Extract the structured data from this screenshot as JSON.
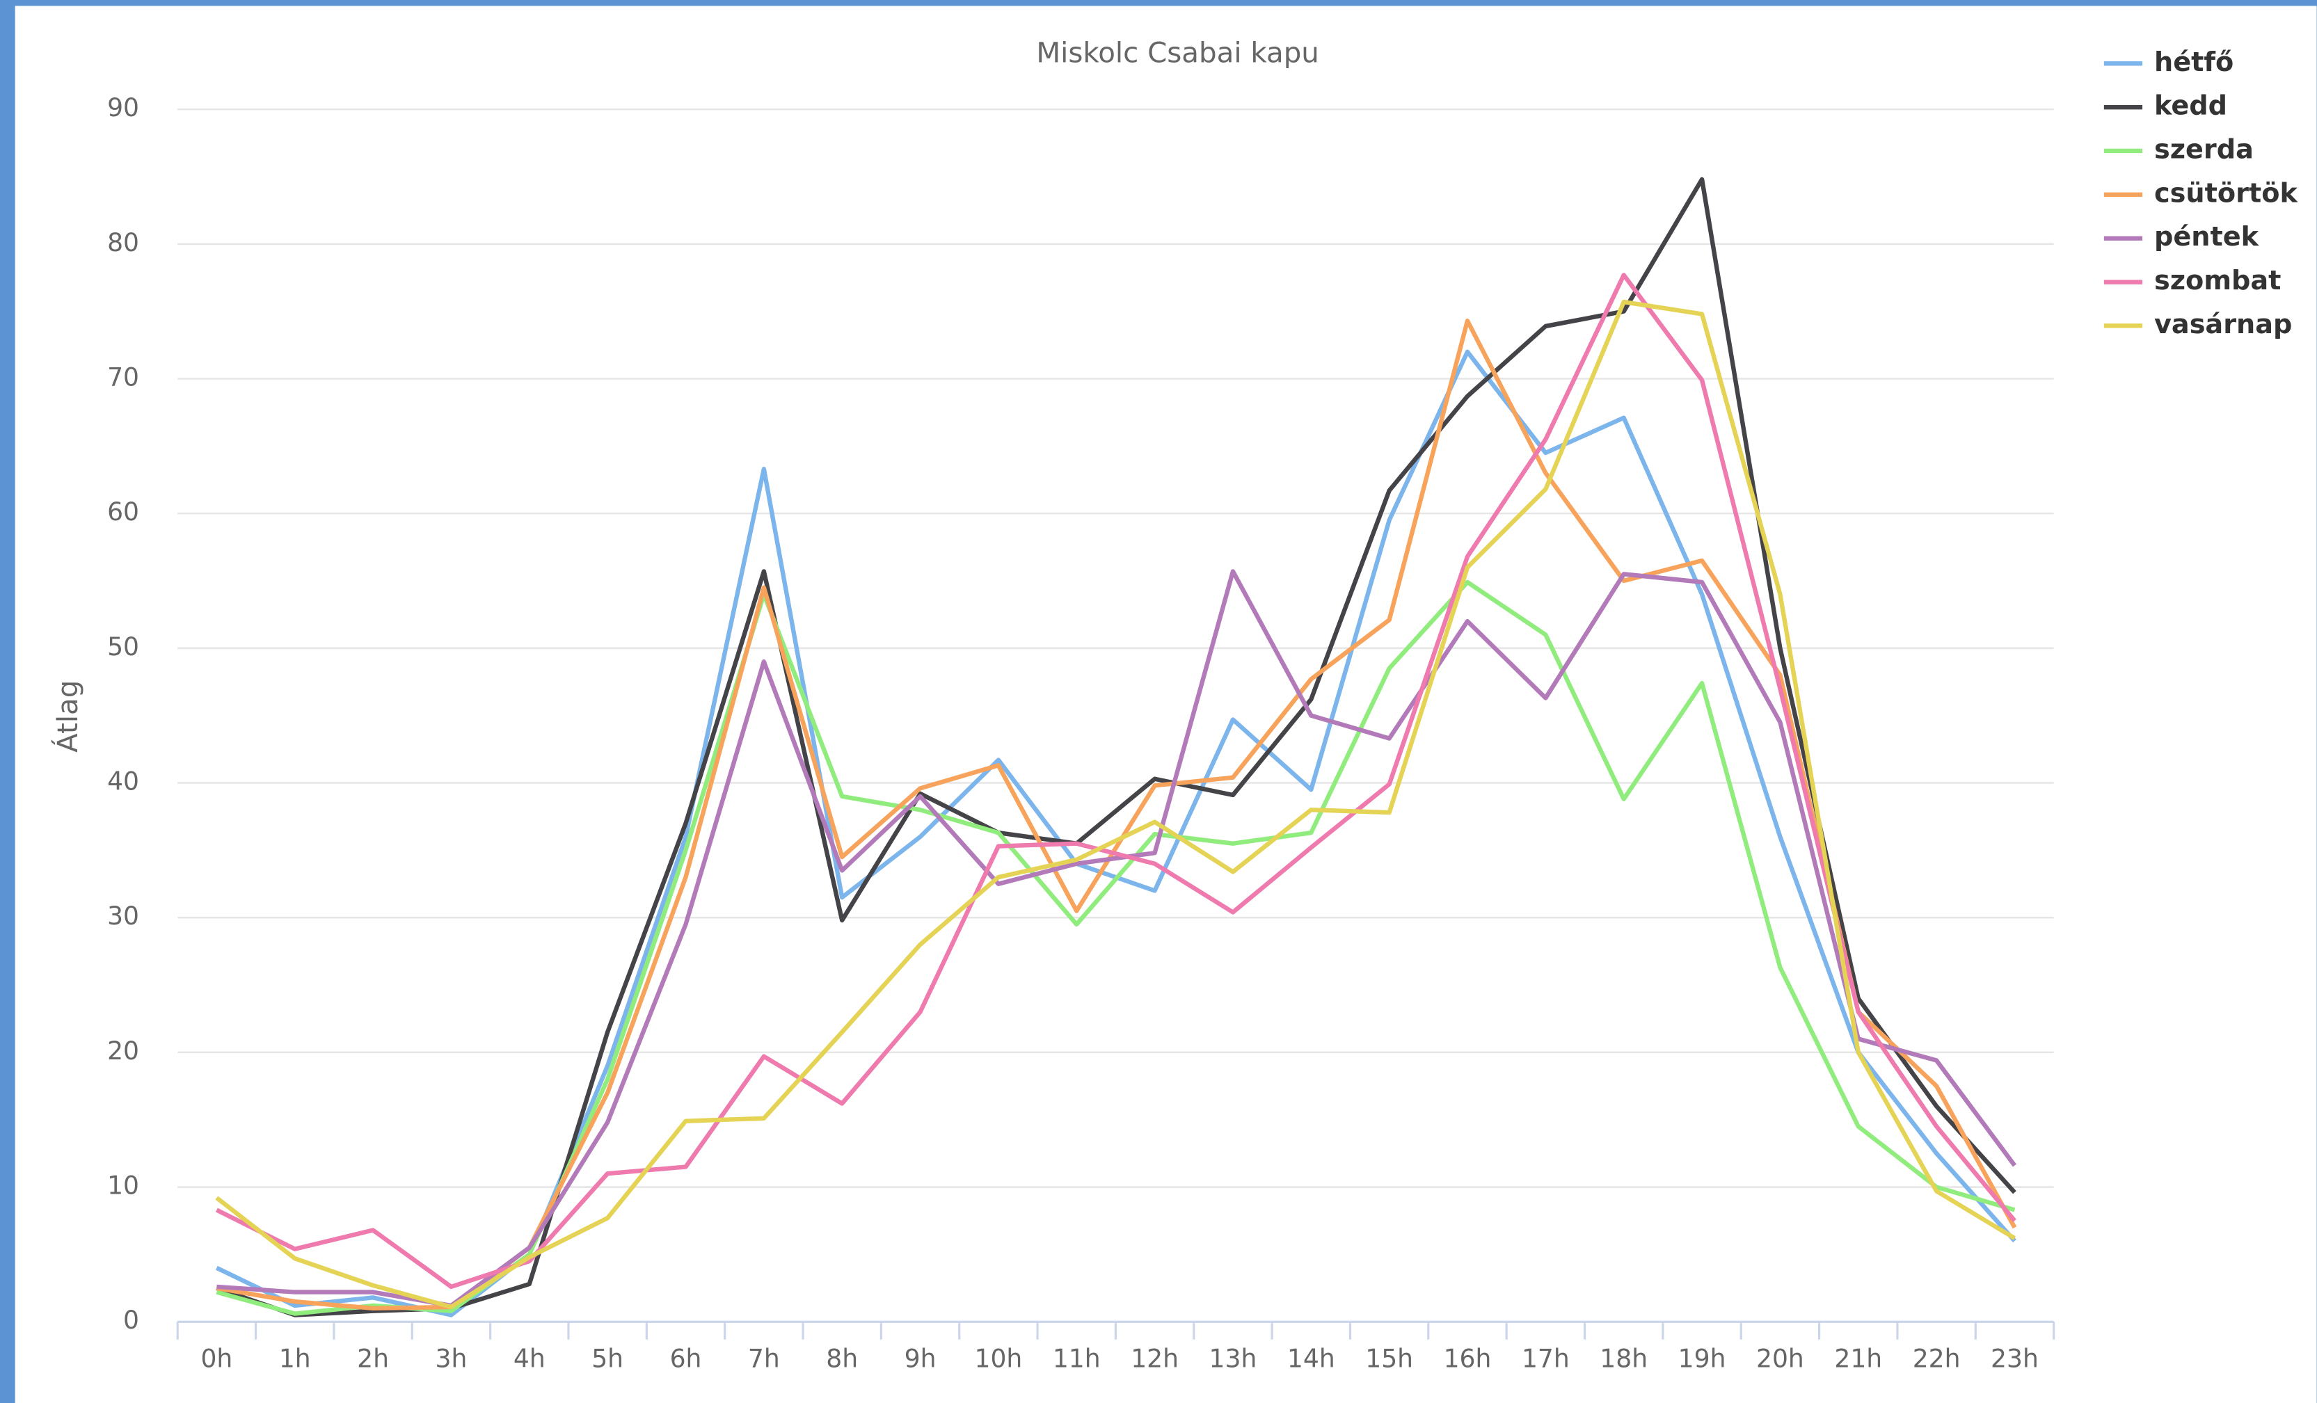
{
  "chart_data": {
    "type": "line",
    "title": "Miskolc Csabai kapu",
    "y_label": "Átlag",
    "categories": [
      "0h",
      "1h",
      "2h",
      "3h",
      "4h",
      "5h",
      "6h",
      "7h",
      "8h",
      "9h",
      "10h",
      "11h",
      "12h",
      "13h",
      "14h",
      "15h",
      "16h",
      "17h",
      "18h",
      "19h",
      "20h",
      "21h",
      "22h",
      "23h"
    ],
    "ylim": [
      0,
      90
    ],
    "yticks": [
      0,
      10,
      20,
      30,
      40,
      50,
      60,
      70,
      80,
      90
    ],
    "grid": true,
    "legend": "top-right",
    "series": [
      {
        "name": "hétfő",
        "color": "#7cb5ec",
        "values": [
          4,
          1.2,
          1.8,
          0.5,
          5,
          19,
          36,
          63.3,
          31.5,
          36,
          41.7,
          34,
          32,
          44.7,
          39.5,
          59.5,
          72,
          64.5,
          67.1,
          54,
          36,
          20,
          12.5,
          6
        ]
      },
      {
        "name": "kedd",
        "color": "#434348",
        "values": [
          2.5,
          0.5,
          0.8,
          1,
          2.8,
          21.5,
          37,
          55.7,
          29.8,
          39.2,
          36.3,
          35.5,
          40.3,
          39.1,
          46.2,
          61.7,
          68.7,
          73.9,
          75,
          84.8,
          50,
          24,
          16,
          9.6
        ]
      },
      {
        "name": "szerda",
        "color": "#90ed7d",
        "values": [
          2.2,
          0.6,
          1.2,
          0.8,
          5,
          18,
          35,
          54,
          39,
          38,
          36.3,
          29.5,
          36.2,
          35.5,
          36.3,
          48.5,
          54.9,
          51,
          38.8,
          47.4,
          26.3,
          14.5,
          10,
          8.3
        ]
      },
      {
        "name": "csütörtök",
        "color": "#f7a35c",
        "values": [
          2.5,
          1.5,
          1,
          1.1,
          5.5,
          17,
          33,
          54.5,
          34.5,
          39.6,
          41.3,
          30.5,
          39.8,
          40.4,
          47.7,
          52.1,
          74.3,
          63,
          55,
          56.5,
          48,
          23,
          17.5,
          7
        ]
      },
      {
        "name": "péntek",
        "color": "#b37ab9",
        "values": [
          2.6,
          2.2,
          2.2,
          1.2,
          5.5,
          14.8,
          29.5,
          49,
          33.5,
          39,
          32.5,
          34,
          34.8,
          55.7,
          45,
          43.3,
          52,
          46.3,
          55.5,
          54.9,
          44.5,
          21,
          19.4,
          11.6
        ]
      },
      {
        "name": "szombat",
        "color": "#ee7aae",
        "values": [
          8.3,
          5.4,
          6.8,
          2.6,
          4.5,
          11,
          11.5,
          19.7,
          16.2,
          23,
          35.3,
          35.5,
          34,
          30.4,
          35.2,
          39.9,
          56.8,
          65.5,
          77.7,
          69.9,
          47,
          23,
          14.5,
          7.5
        ]
      },
      {
        "name": "vasárnap",
        "color": "#e4d354",
        "values": [
          9.2,
          4.7,
          2.7,
          1.1,
          4.8,
          7.7,
          14.9,
          15.1,
          21.5,
          28,
          33,
          34.3,
          37.1,
          33.4,
          38,
          37.8,
          56,
          61.8,
          75.7,
          74.8,
          54,
          20,
          9.7,
          6.2
        ]
      }
    ]
  }
}
